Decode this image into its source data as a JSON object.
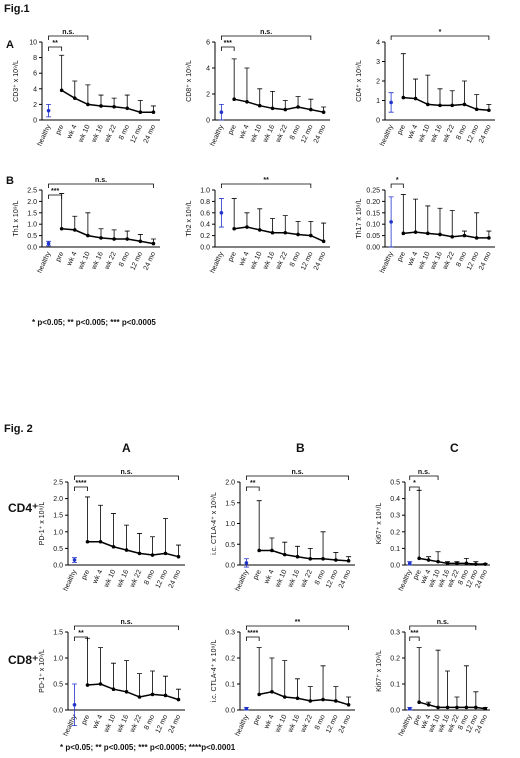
{
  "page": {
    "fig1_title": "Fig.1",
    "fig1_rows": [
      "A",
      "B"
    ],
    "fig1_note": "* p<0.05; ** p<0.005; *** p<0.0005",
    "fig2_title": "Fig. 2",
    "fig2_cols": [
      "A",
      "B",
      "C"
    ],
    "fig2_rows": [
      "CD4⁺",
      "CD8⁺"
    ],
    "fig2_note": "* p<0.05; ** p<0.005; *** p<0.0005; ****p<0.0001"
  },
  "chart_data": [
    {
      "type": "line",
      "y_label": "CD3⁺ x 10⁹/L",
      "categories": [
        "healthy",
        "pre",
        "wk 4",
        "wk 10",
        "wk 16",
        "wk 22",
        "8 mo",
        "12 mo",
        "24 mo"
      ],
      "ylim": [
        0,
        10
      ],
      "yticks": [
        0,
        2,
        4,
        6,
        8,
        10
      ],
      "series": [
        {
          "color": "#2233cc",
          "values": [
            1.2,
            null,
            null,
            null,
            null,
            null,
            null,
            null,
            null
          ],
          "errors": [
            0.8,
            null,
            null,
            null,
            null,
            null,
            null,
            null,
            null
          ]
        },
        {
          "color": "#000000",
          "values": [
            null,
            3.8,
            2.8,
            2.0,
            1.8,
            1.7,
            1.5,
            1.0,
            1.0
          ],
          "errors": [
            null,
            4.5,
            2.2,
            2.5,
            1.4,
            1.1,
            1.7,
            1.5,
            0.8
          ]
        }
      ],
      "brackets": [
        {
          "from": "healthy",
          "to": "pre",
          "label": "**"
        },
        {
          "from": "healthy",
          "to": "wk 10",
          "label": "n.s."
        }
      ]
    },
    {
      "type": "line",
      "y_label": "CD8⁺ x 10⁹/L",
      "categories": [
        "healthy",
        "pre",
        "wk 4",
        "wk 10",
        "wk 16",
        "wk 22",
        "8 mo",
        "12 mo",
        "24 mo"
      ],
      "ylim": [
        0,
        6
      ],
      "yticks": [
        0,
        2,
        4,
        6
      ],
      "series": [
        {
          "color": "#2233cc",
          "values": [
            0.6,
            null,
            null,
            null,
            null,
            null,
            null,
            null,
            null
          ],
          "errors": [
            0.6,
            null,
            null,
            null,
            null,
            null,
            null,
            null,
            null
          ]
        },
        {
          "color": "#000000",
          "values": [
            null,
            1.6,
            1.4,
            1.1,
            0.9,
            0.8,
            1.0,
            0.8,
            0.6
          ],
          "errors": [
            null,
            3.1,
            2.6,
            1.3,
            1.3,
            0.7,
            0.8,
            0.8,
            0.4
          ]
        }
      ],
      "brackets": [
        {
          "from": "healthy",
          "to": "pre",
          "label": "***"
        },
        {
          "from": "healthy",
          "to": "12 mo",
          "label": "n.s."
        }
      ]
    },
    {
      "type": "line",
      "y_label": "CD4⁺ x 10⁹/L",
      "categories": [
        "healthy",
        "pre",
        "wk 4",
        "wk 10",
        "wk 16",
        "wk 22",
        "8 mo",
        "12 mo",
        "24 mo"
      ],
      "ylim": [
        0,
        4
      ],
      "yticks": [
        0,
        1,
        2,
        3,
        4
      ],
      "series": [
        {
          "color": "#2233cc",
          "values": [
            0.9,
            null,
            null,
            null,
            null,
            null,
            null,
            null,
            null
          ],
          "errors": [
            0.5,
            null,
            null,
            null,
            null,
            null,
            null,
            null,
            null
          ]
        },
        {
          "color": "#000000",
          "values": [
            null,
            1.15,
            1.1,
            0.8,
            0.75,
            0.75,
            0.8,
            0.55,
            0.5
          ],
          "errors": [
            null,
            2.25,
            1.0,
            1.5,
            0.85,
            0.75,
            1.2,
            0.75,
            0.3
          ]
        }
      ],
      "brackets": [
        {
          "from": "healthy",
          "to": "24 mo",
          "label": "*"
        }
      ]
    },
    {
      "type": "line",
      "y_label": "Th1 x 10⁹/L",
      "categories": [
        "healthy",
        "pre",
        "wk 4",
        "wk 10",
        "wk 16",
        "wk 22",
        "8 mo",
        "12 mo",
        "24 mo"
      ],
      "ylim": [
        0,
        2.5
      ],
      "yticks": [
        {
          "value": 0,
          "label": "0.0"
        },
        0.5,
        {
          "value": 1,
          "label": "1.0"
        },
        1.5,
        {
          "value": 2,
          "label": "2.0"
        },
        2.5
      ],
      "series": [
        {
          "color": "#2233cc",
          "values": [
            0.15,
            null,
            null,
            null,
            null,
            null,
            null,
            null,
            null
          ],
          "errors": [
            0.1,
            null,
            null,
            null,
            null,
            null,
            null,
            null,
            null
          ]
        },
        {
          "color": "#000000",
          "values": [
            null,
            0.8,
            0.75,
            0.5,
            0.4,
            0.35,
            0.35,
            0.25,
            0.15
          ],
          "errors": [
            null,
            1.55,
            0.6,
            1.0,
            0.4,
            0.4,
            0.35,
            0.3,
            0.2
          ]
        }
      ],
      "brackets": [
        {
          "from": "healthy",
          "to": "pre",
          "label": "***"
        },
        {
          "from": "healthy",
          "to": "24 mo",
          "label": "n.s."
        }
      ]
    },
    {
      "type": "line",
      "y_label": "Th2 x 10⁹/L",
      "categories": [
        "healthy",
        "pre",
        "wk 4",
        "wk 10",
        "wk 16",
        "wk 22",
        "8 mo",
        "12 mo",
        "24 mo"
      ],
      "ylim": [
        0,
        1
      ],
      "yticks": [
        {
          "value": 0,
          "label": "0.0"
        },
        0.2,
        0.4,
        0.6,
        0.8,
        {
          "value": 1,
          "label": "1.0"
        }
      ],
      "series": [
        {
          "color": "#2233cc",
          "values": [
            0.6,
            null,
            null,
            null,
            null,
            null,
            null,
            null,
            null
          ],
          "errors": [
            0.25,
            null,
            null,
            null,
            null,
            null,
            null,
            null,
            null
          ]
        },
        {
          "color": "#000000",
          "values": [
            null,
            0.32,
            0.35,
            0.3,
            0.25,
            0.25,
            0.22,
            0.2,
            0.1
          ],
          "errors": [
            null,
            0.53,
            0.25,
            0.37,
            0.25,
            0.3,
            0.23,
            0.25,
            0.32
          ]
        }
      ],
      "brackets": [
        {
          "from": "healthy",
          "to": "12 mo",
          "label": "**"
        }
      ]
    },
    {
      "type": "line",
      "y_label": "Th17 x 10⁹/L",
      "categories": [
        "healthy",
        "pre",
        "wk 4",
        "wk 10",
        "wk 16",
        "wk 22",
        "8 mo",
        "12 mo",
        "24 mo"
      ],
      "ylim": [
        0,
        0.25
      ],
      "yticks": [
        {
          "value": 0,
          "label": "0.00"
        },
        0.05,
        {
          "value": 0.1,
          "label": "0.10"
        },
        0.15,
        {
          "value": 0.2,
          "label": "0.20"
        },
        0.25
      ],
      "series": [
        {
          "color": "#2233cc",
          "values": [
            0.11,
            null,
            null,
            null,
            null,
            null,
            null,
            null,
            null
          ],
          "errors": [
            0.11,
            null,
            null,
            null,
            null,
            null,
            null,
            null,
            null
          ]
        },
        {
          "color": "#000000",
          "values": [
            null,
            0.06,
            0.065,
            0.06,
            0.055,
            0.045,
            0.05,
            0.04,
            0.04
          ],
          "errors": [
            null,
            0.17,
            0.145,
            0.12,
            0.115,
            0.115,
            0.02,
            0.11,
            0.03
          ]
        }
      ],
      "brackets": [
        {
          "from": "healthy",
          "to": "pre",
          "label": "*"
        }
      ]
    },
    {
      "type": "line",
      "y_label": "PD-1⁺ x 10⁹/L",
      "categories": [
        "healthy",
        "pre",
        "wk 4",
        "wk 10",
        "wk 16",
        "wk 22",
        "8 mo",
        "12 mo",
        "24 mo"
      ],
      "ylim": [
        0,
        2.5
      ],
      "yticks": [
        {
          "value": 0,
          "label": "0.0"
        },
        0.5,
        {
          "value": 1,
          "label": "1.0"
        },
        1.5,
        {
          "value": 2,
          "label": "2.0"
        },
        2.5
      ],
      "series": [
        {
          "color": "#2233cc",
          "values": [
            0.15,
            null,
            null,
            null,
            null,
            null,
            null,
            null,
            null
          ],
          "errors": [
            0.07,
            null,
            null,
            null,
            null,
            null,
            null,
            null,
            null
          ]
        },
        {
          "color": "#000000",
          "values": [
            null,
            0.7,
            0.7,
            0.55,
            0.45,
            0.35,
            0.3,
            0.35,
            0.25
          ],
          "errors": [
            null,
            1.35,
            1.1,
            1.0,
            0.75,
            0.6,
            0.55,
            1.05,
            0.35
          ]
        }
      ],
      "brackets": [
        {
          "from": "healthy",
          "to": "pre",
          "label": "****"
        },
        {
          "from": "healthy",
          "to": "24 mo",
          "label": "n.s."
        }
      ]
    },
    {
      "type": "line",
      "y_label": "i.c. CTLA-4⁺ x 10⁹/L",
      "categories": [
        "healthy",
        "pre",
        "wk 4",
        "wk 10",
        "wk 16",
        "wk 22",
        "8 mo",
        "12 mo",
        "24 mo"
      ],
      "ylim": [
        0,
        2
      ],
      "yticks": [
        {
          "value": 0,
          "label": "0.0"
        },
        0.5,
        {
          "value": 1,
          "label": "1.0"
        },
        1.5,
        {
          "value": 2,
          "label": "2.0"
        }
      ],
      "series": [
        {
          "color": "#2233cc",
          "values": [
            0.05,
            null,
            null,
            null,
            null,
            null,
            null,
            null,
            null
          ],
          "errors": [
            0.1,
            null,
            null,
            null,
            null,
            null,
            null,
            null,
            null
          ]
        },
        {
          "color": "#000000",
          "values": [
            null,
            0.35,
            0.35,
            0.25,
            0.2,
            0.15,
            0.15,
            0.12,
            0.1
          ],
          "errors": [
            null,
            1.2,
            0.3,
            0.3,
            0.25,
            0.25,
            0.65,
            0.18,
            0.1
          ]
        }
      ],
      "brackets": [
        {
          "from": "healthy",
          "to": "pre",
          "label": "**"
        },
        {
          "from": "healthy",
          "to": "24 mo",
          "label": "n.s."
        }
      ]
    },
    {
      "type": "line",
      "y_label": "Ki67⁺ x 10⁹/L",
      "categories": [
        "healthy",
        "pre",
        "wk 4",
        "wk 10",
        "wk 16",
        "wk 22",
        "8 mo",
        "12 mo",
        "24 mo"
      ],
      "ylim": [
        0,
        0.5
      ],
      "yticks": [
        {
          "value": 0,
          "label": "0.0"
        },
        0.1,
        0.2,
        0.3,
        0.4,
        0.5
      ],
      "series": [
        {
          "color": "#2233cc",
          "values": [
            0.01,
            null,
            null,
            null,
            null,
            null,
            null,
            null,
            null
          ],
          "errors": [
            0.01,
            null,
            null,
            null,
            null,
            null,
            null,
            null,
            null
          ]
        },
        {
          "color": "#000000",
          "values": [
            null,
            0.04,
            0.03,
            0.02,
            0.01,
            0.01,
            0.01,
            0.005,
            0.005
          ],
          "errors": [
            null,
            0.41,
            0.02,
            0.06,
            0.01,
            0.01,
            0.03,
            0.015,
            0.005
          ]
        }
      ],
      "brackets": [
        {
          "from": "healthy",
          "to": "pre",
          "label": "*"
        },
        {
          "from": "healthy",
          "to": "wk 10",
          "label": "n.s."
        }
      ]
    },
    {
      "type": "line",
      "y_label": "PD-1⁺ x 10⁹/L",
      "categories": [
        "healthy",
        "pre",
        "wk 4",
        "wk 10",
        "wk 16",
        "wk 22",
        "8 mo",
        "12 mo",
        "24 mo"
      ],
      "ylim": [
        0,
        1.5
      ],
      "yticks": [
        {
          "value": 0,
          "label": "0.0"
        },
        0.5,
        {
          "value": 1,
          "label": "1.0"
        },
        1.5
      ],
      "series": [
        {
          "color": "#2233cc",
          "values": [
            0.1,
            null,
            null,
            null,
            null,
            null,
            null,
            null,
            null
          ],
          "errors": [
            0.4,
            null,
            null,
            null,
            null,
            null,
            null,
            null,
            null
          ]
        },
        {
          "color": "#000000",
          "values": [
            null,
            0.48,
            0.5,
            0.4,
            0.35,
            0.25,
            0.3,
            0.28,
            0.2
          ],
          "errors": [
            null,
            0.9,
            0.7,
            0.5,
            0.6,
            0.45,
            0.45,
            0.37,
            0.2
          ]
        }
      ],
      "brackets": [
        {
          "from": "healthy",
          "to": "pre",
          "label": "**"
        },
        {
          "from": "healthy",
          "to": "24 mo",
          "label": "n.s."
        }
      ]
    },
    {
      "type": "line",
      "y_label": "i.c. CTLA-4⁺ x 10⁹/L",
      "categories": [
        "healthy",
        "pre",
        "wk 4",
        "wk 10",
        "wk 16",
        "wk 22",
        "8 mo",
        "12 mo",
        "24 mo"
      ],
      "ylim": [
        0,
        0.3
      ],
      "yticks": [
        {
          "value": 0,
          "label": "0.0"
        },
        0.1,
        0.2,
        0.3
      ],
      "series": [
        {
          "color": "#2233cc",
          "values": [
            0.005,
            null,
            null,
            null,
            null,
            null,
            null,
            null,
            null
          ],
          "errors": [
            0.005,
            null,
            null,
            null,
            null,
            null,
            null,
            null,
            null
          ]
        },
        {
          "color": "#000000",
          "values": [
            null,
            0.06,
            0.07,
            0.05,
            0.045,
            0.035,
            0.04,
            0.035,
            0.02
          ],
          "errors": [
            null,
            0.18,
            0.13,
            0.14,
            0.075,
            0.055,
            0.13,
            0.055,
            0.03
          ]
        }
      ],
      "brackets": [
        {
          "from": "healthy",
          "to": "pre",
          "label": "****"
        },
        {
          "from": "healthy",
          "to": "24 mo",
          "label": "**"
        }
      ]
    },
    {
      "type": "line",
      "y_label": "Ki67⁺ x 10⁹/L",
      "categories": [
        "healthy",
        "pre",
        "wk 4",
        "wk 10",
        "wk 16",
        "wk 22",
        "8 mo",
        "12 mo",
        "24 mo"
      ],
      "ylim": [
        0,
        0.3
      ],
      "yticks": [
        {
          "value": 0,
          "label": "0.0"
        },
        0.1,
        0.2,
        0.3
      ],
      "series": [
        {
          "color": "#2233cc",
          "values": [
            0.005,
            null,
            null,
            null,
            null,
            null,
            null,
            null,
            null
          ],
          "errors": [
            0.005,
            null,
            null,
            null,
            null,
            null,
            null,
            null,
            null
          ]
        },
        {
          "color": "#000000",
          "values": [
            null,
            0.03,
            0.02,
            0.01,
            0.01,
            0.01,
            0.01,
            0.01,
            0.005
          ],
          "errors": [
            null,
            0.21,
            0.01,
            0.22,
            0.14,
            0.04,
            0.16,
            0.06,
            0.005
          ]
        }
      ],
      "brackets": [
        {
          "from": "healthy",
          "to": "pre",
          "label": "***"
        },
        {
          "from": "healthy",
          "to": "12 mo",
          "label": "n.s."
        }
      ]
    }
  ]
}
